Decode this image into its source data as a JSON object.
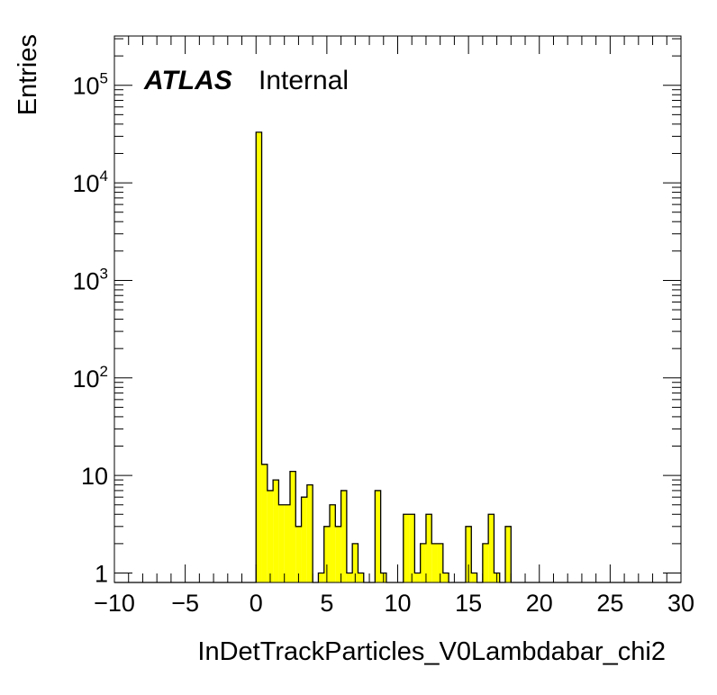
{
  "chart_data": {
    "type": "bar",
    "xlabel": "InDetTrackParticles_V0Lambdabar_chi2",
    "ylabel": "Entries",
    "label_bold": "ATLAS",
    "label_status": "Internal",
    "xlim": [
      -10,
      30
    ],
    "ylim": [
      0.8,
      320000
    ],
    "yscale": "log",
    "fill_color": "#ffff00",
    "line_color": "#000000",
    "bin_width": 0.4,
    "x_ticks": [
      "−10",
      "−5",
      "0",
      "5",
      "10",
      "15",
      "20",
      "25",
      "30"
    ],
    "x_tick_values": [
      -10,
      -5,
      0,
      5,
      10,
      15,
      20,
      25,
      30
    ],
    "y_ticks": [
      {
        "value": 1,
        "base": "1",
        "exp": ""
      },
      {
        "value": 10,
        "base": "10",
        "exp": ""
      },
      {
        "value": 100,
        "base": "10",
        "exp": "2"
      },
      {
        "value": 1000,
        "base": "10",
        "exp": "3"
      },
      {
        "value": 10000,
        "base": "10",
        "exp": "4"
      },
      {
        "value": 100000,
        "base": "10",
        "exp": "5"
      }
    ],
    "bins": [
      {
        "x": 0.0,
        "value": 33000
      },
      {
        "x": 0.4,
        "value": 13
      },
      {
        "x": 0.8,
        "value": 7
      },
      {
        "x": 1.2,
        "value": 9
      },
      {
        "x": 1.6,
        "value": 5
      },
      {
        "x": 2.0,
        "value": 5
      },
      {
        "x": 2.4,
        "value": 11
      },
      {
        "x": 2.8,
        "value": 3
      },
      {
        "x": 3.2,
        "value": 6
      },
      {
        "x": 3.6,
        "value": 8
      },
      {
        "x": 4.4,
        "value": 1
      },
      {
        "x": 4.8,
        "value": 3
      },
      {
        "x": 5.2,
        "value": 5
      },
      {
        "x": 5.6,
        "value": 3
      },
      {
        "x": 6.0,
        "value": 7
      },
      {
        "x": 6.4,
        "value": 1
      },
      {
        "x": 6.8,
        "value": 2
      },
      {
        "x": 7.2,
        "value": 1
      },
      {
        "x": 8.4,
        "value": 7
      },
      {
        "x": 8.8,
        "value": 1
      },
      {
        "x": 10.4,
        "value": 4
      },
      {
        "x": 10.8,
        "value": 4
      },
      {
        "x": 11.2,
        "value": 1
      },
      {
        "x": 11.6,
        "value": 2
      },
      {
        "x": 12.0,
        "value": 4
      },
      {
        "x": 12.4,
        "value": 2
      },
      {
        "x": 12.8,
        "value": 2
      },
      {
        "x": 13.2,
        "value": 1
      },
      {
        "x": 14.8,
        "value": 3
      },
      {
        "x": 15.2,
        "value": 1
      },
      {
        "x": 16.0,
        "value": 2
      },
      {
        "x": 16.4,
        "value": 4
      },
      {
        "x": 16.8,
        "value": 1
      },
      {
        "x": 17.6,
        "value": 3
      }
    ]
  }
}
